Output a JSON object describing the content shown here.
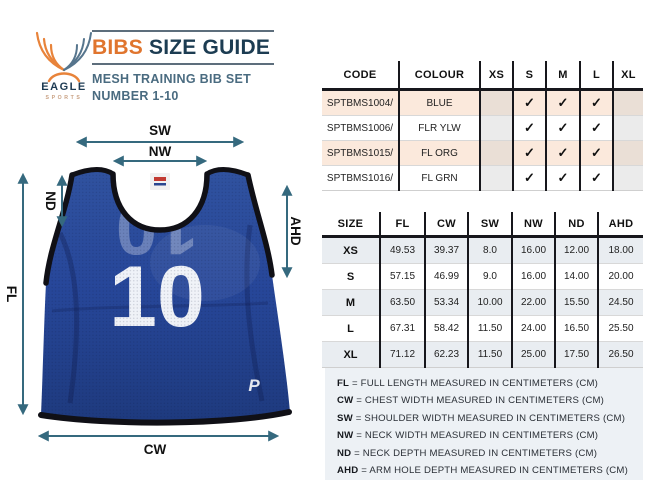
{
  "brand": {
    "name": "EAGLE",
    "tagline": "SPORTS"
  },
  "header": {
    "title_accent": "BIBS",
    "title_rest": " SIZE GUIDE",
    "subtitle_line1": "MESH TRAINING BIB SET",
    "subtitle_line2": "NUMBER 1-10"
  },
  "diagram": {
    "bib_number": "10",
    "bib_logo_letter": "P",
    "labels": {
      "sw": "SW",
      "nw": "NW",
      "nd": "ND",
      "ahd": "AHD",
      "fl": "FL",
      "cw": "CW"
    }
  },
  "availability_table": {
    "headers": [
      "CODE",
      "COLOUR",
      "XS",
      "S",
      "M",
      "L",
      "XL"
    ],
    "size_columns": [
      "XS",
      "S",
      "M",
      "L",
      "XL"
    ],
    "shaded_columns": [
      "XS",
      "XL"
    ],
    "check_symbol": "✓",
    "rows": [
      {
        "code": "SPTBMS1004/",
        "colour": "BLUE",
        "available": {
          "XS": false,
          "S": true,
          "M": true,
          "L": true,
          "XL": false
        }
      },
      {
        "code": "SPTBMS1006/",
        "colour": "FLR YLW",
        "available": {
          "XS": false,
          "S": true,
          "M": true,
          "L": true,
          "XL": false
        }
      },
      {
        "code": "SPTBMS1015/",
        "colour": "FL ORG",
        "available": {
          "XS": false,
          "S": true,
          "M": true,
          "L": true,
          "XL": false
        }
      },
      {
        "code": "SPTBMS1016/",
        "colour": "FL GRN",
        "available": {
          "XS": false,
          "S": true,
          "M": true,
          "L": true,
          "XL": false
        }
      }
    ]
  },
  "size_table": {
    "headers": [
      "SIZE",
      "FL",
      "CW",
      "SW",
      "NW",
      "ND",
      "AHD"
    ],
    "rows": [
      [
        "XS",
        "49.53",
        "39.37",
        "8.0",
        "16.00",
        "12.00",
        "18.00"
      ],
      [
        "S",
        "57.15",
        "46.99",
        "9.0",
        "16.00",
        "14.00",
        "20.00"
      ],
      [
        "M",
        "63.50",
        "53.34",
        "10.00",
        "22.00",
        "15.50",
        "24.50"
      ],
      [
        "L",
        "67.31",
        "58.42",
        "11.50",
        "24.00",
        "16.50",
        "25.50"
      ],
      [
        "XL",
        "71.12",
        "62.23",
        "11.50",
        "25.00",
        "17.50",
        "26.50"
      ]
    ]
  },
  "legend": {
    "items": [
      {
        "abbr": "FL",
        "text": "= FULL LENGTH MEASURED IN CENTIMETERS (CM)"
      },
      {
        "abbr": "CW",
        "text": "= CHEST WIDTH MEASURED IN CENTIMETERS (CM)"
      },
      {
        "abbr": "SW",
        "text": "= SHOULDER WIDTH MEASURED IN CENTIMETERS (CM)"
      },
      {
        "abbr": "NW",
        "text": "= NECK WIDTH MEASURED IN CENTIMETERS (CM)"
      },
      {
        "abbr": "ND",
        "text": "= NECK DEPTH MEASURED IN CENTIMETERS (CM)"
      },
      {
        "abbr": "AHD",
        "text": "= ARM HOLE DEPTH MEASURED IN CENTIMETERS (CM)"
      }
    ]
  },
  "colors": {
    "accent_orange": "#e0752e",
    "navy": "#1c3c52",
    "subtitle_blue": "#4a6b80",
    "arrow_teal": "#35697e",
    "row_peach": "#fbe9dc",
    "row_gray_blue": "#e9edf1",
    "legend_bg": "#edf1f5",
    "bib_blue": "#2c4d9a",
    "trim_black": "#101016"
  }
}
